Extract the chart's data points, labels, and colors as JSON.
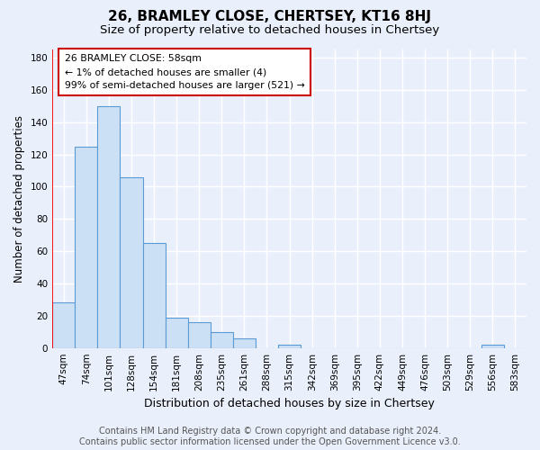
{
  "title": "26, BRAMLEY CLOSE, CHERTSEY, KT16 8HJ",
  "subtitle": "Size of property relative to detached houses in Chertsey",
  "xlabel": "Distribution of detached houses by size in Chertsey",
  "ylabel": "Number of detached properties",
  "bin_labels": [
    "47sqm",
    "74sqm",
    "101sqm",
    "128sqm",
    "154sqm",
    "181sqm",
    "208sqm",
    "235sqm",
    "261sqm",
    "288sqm",
    "315sqm",
    "342sqm",
    "369sqm",
    "395sqm",
    "422sqm",
    "449sqm",
    "476sqm",
    "503sqm",
    "529sqm",
    "556sqm",
    "583sqm"
  ],
  "bar_heights": [
    28,
    125,
    150,
    106,
    65,
    19,
    16,
    10,
    6,
    0,
    2,
    0,
    0,
    0,
    0,
    0,
    0,
    0,
    0,
    2,
    0
  ],
  "bar_color": "#cce0f5",
  "bar_edge_color": "#5b9bd5",
  "annotation_text": "26 BRAMLEY CLOSE: 58sqm\n← 1% of detached houses are smaller (4)\n99% of semi-detached houses are larger (521) →",
  "annotation_box_color": "#ffffff",
  "annotation_box_edge": "#cc0000",
  "ylim": [
    0,
    185
  ],
  "yticks": [
    0,
    20,
    40,
    60,
    80,
    100,
    120,
    140,
    160,
    180
  ],
  "footer_text": "Contains HM Land Registry data © Crown copyright and database right 2024.\nContains public sector information licensed under the Open Government Licence v3.0.",
  "bg_color": "#eaf0fb",
  "grid_color": "#ffffff",
  "title_fontsize": 11,
  "subtitle_fontsize": 9.5,
  "xlabel_fontsize": 9,
  "ylabel_fontsize": 8.5,
  "tick_fontsize": 7.5,
  "footer_fontsize": 7
}
